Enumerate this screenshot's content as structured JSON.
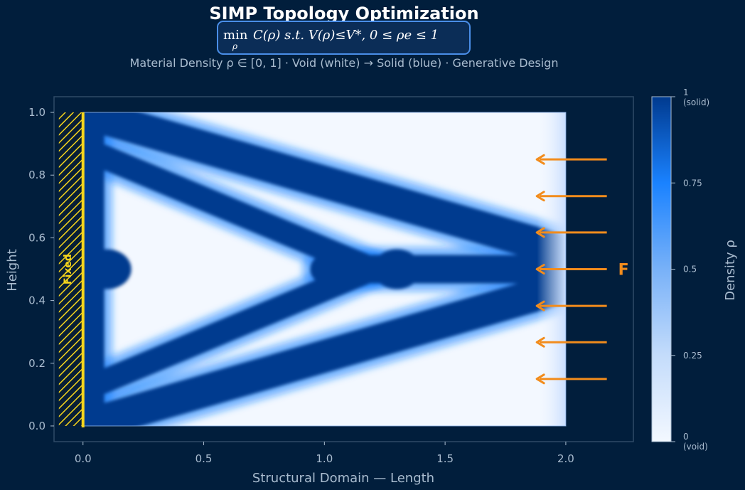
{
  "header": {
    "title": "SIMP Topology Optimization",
    "formula": "min C(ρ)   s.t.  V(ρ)≤V*,  0≤ρe≤1",
    "formula_min": "min",
    "formula_sub": "ρ",
    "formula_body": "C(ρ)    s.t.  V(ρ)≤V*,  0 ≤ ρe ≤ 1",
    "subtitle": "Material Density  ρ ∈ [0, 1]  ·  Void (white) → Solid (blue)  ·  Generative Design"
  },
  "chart_data": {
    "type": "heatmap",
    "title": "SIMP Topology Optimization",
    "xlabel": "Structural Domain — Length",
    "ylabel": "Height",
    "xlim": [
      -0.12,
      2.28
    ],
    "ylim": [
      -0.05,
      1.05
    ],
    "domain": {
      "x": [
        0,
        2
      ],
      "y": [
        0,
        1
      ]
    },
    "x_ticks": [
      {
        "value": 0.0,
        "label": "0.0"
      },
      {
        "value": 0.5,
        "label": "0.5"
      },
      {
        "value": 1.0,
        "label": "1.0"
      },
      {
        "value": 1.5,
        "label": "1.5"
      },
      {
        "value": 2.0,
        "label": "2.0"
      }
    ],
    "y_ticks": [
      {
        "value": 0.0,
        "label": "0.0"
      },
      {
        "value": 0.2,
        "label": "0.2"
      },
      {
        "value": 0.4,
        "label": "0.4"
      },
      {
        "value": 0.6,
        "label": "0.6"
      },
      {
        "value": 0.8,
        "label": "0.8"
      },
      {
        "value": 1.0,
        "label": "1.0"
      }
    ],
    "colorbar": {
      "label": "Density ρ",
      "range": [
        0,
        1
      ],
      "ticks": [
        {
          "value": 1.0,
          "label": "1",
          "sublabel": "(solid)"
        },
        {
          "value": 0.75,
          "label": "0.75",
          "sublabel": ""
        },
        {
          "value": 0.5,
          "label": "0.5",
          "sublabel": ""
        },
        {
          "value": 0.25,
          "label": "0.25",
          "sublabel": ""
        },
        {
          "value": 0.0,
          "label": "0",
          "sublabel": "(void)"
        }
      ]
    },
    "fixed_support": {
      "x": 0.0,
      "label": "Fixed"
    },
    "loads": {
      "label": "F",
      "x_start": 2.17,
      "x_end": 1.88,
      "y": [
        0.85,
        0.733,
        0.617,
        0.5,
        0.383,
        0.267,
        0.15
      ]
    },
    "members": [
      {
        "name": "top-chord",
        "from": [
          0.0,
          1.0
        ],
        "to": [
          1.98,
          0.56
        ]
      },
      {
        "name": "bottom-chord",
        "from": [
          0.0,
          0.0
        ],
        "to": [
          1.98,
          0.44
        ]
      },
      {
        "name": "upper-brace",
        "from": [
          0.08,
          0.86
        ],
        "to": [
          1.2,
          0.5
        ]
      },
      {
        "name": "lower-brace",
        "from": [
          0.08,
          0.14
        ],
        "to": [
          1.2,
          0.5
        ]
      },
      {
        "name": "central-spine",
        "from": [
          1.0,
          0.5
        ],
        "to": [
          1.98,
          0.5
        ]
      },
      {
        "name": "left-wall",
        "from": [
          0.0,
          0.0
        ],
        "to": [
          0.0,
          1.0
        ]
      }
    ]
  },
  "colors": {
    "background": "#011e3c",
    "solid": "#003a8f",
    "mid": "#1a82ff",
    "void": "#f3f8ff",
    "fixed": "#f6d51c",
    "force": "#f28c1c",
    "text": "#a9bccf",
    "axis": "#2f4a66"
  }
}
